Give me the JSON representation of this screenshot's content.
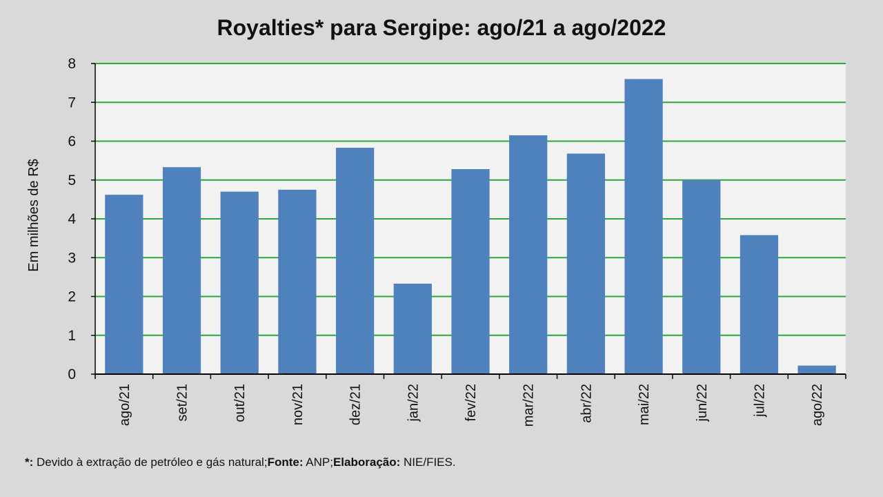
{
  "chart_data": {
    "type": "bar",
    "title": "Royalties* para Sergipe: ago/21 a ago/2022",
    "xlabel": "",
    "ylabel": "Em milhões de R$",
    "categories": [
      "ago/21",
      "set/21",
      "out/21",
      "nov/21",
      "dez/21",
      "jan/22",
      "fev/22",
      "mar/22",
      "abr/22",
      "mai/22",
      "jun/22",
      "jul/22",
      "ago/22"
    ],
    "values": [
      4.62,
      5.33,
      4.7,
      4.75,
      5.83,
      2.33,
      5.28,
      6.15,
      5.68,
      7.6,
      5.0,
      3.58,
      0.22
    ],
    "ylim": [
      0,
      8
    ],
    "yticks": [
      0,
      1,
      2,
      3,
      4,
      5,
      6,
      7,
      8
    ],
    "grid": true,
    "colors": {
      "bar": "#4f81bd",
      "grid": "#2aa83d",
      "plot_bg": "#f2f2f2",
      "page_bg": "#d9d9d9"
    }
  },
  "footnote": {
    "star_label": "*:",
    "star_text": " Devido à extração de petróleo e gás natural;",
    "source_label": "Fonte:",
    "source_text": " ANP;",
    "elab_label": "Elaboração:",
    "elab_text": " NIE/FIES."
  }
}
